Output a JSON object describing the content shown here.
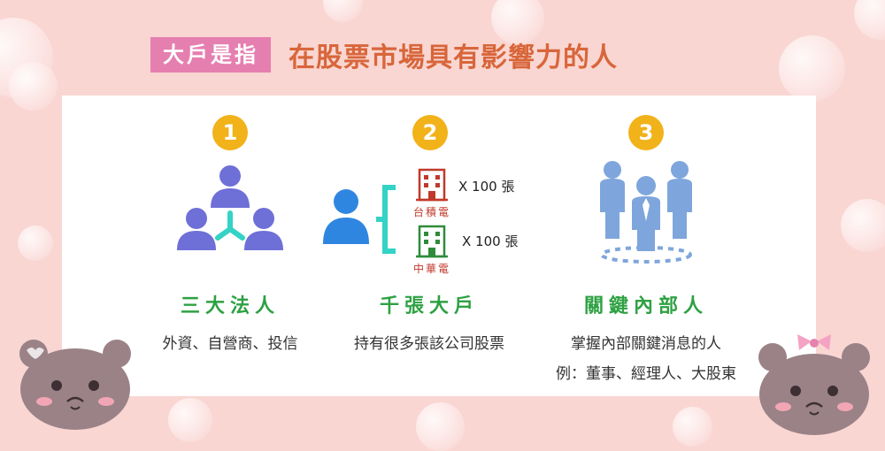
{
  "title": {
    "tag": "大戶是指",
    "text": "在股票市場具有影響力的人"
  },
  "columns": [
    {
      "number": "1",
      "heading": "三大法人",
      "lines": [
        "外資、自營商、投信"
      ]
    },
    {
      "number": "2",
      "heading": "千張大戶",
      "lines": [
        "持有很多張該公司股票"
      ],
      "holdings": [
        {
          "company": "台積電",
          "multiplier": "X 100 張"
        },
        {
          "company": "中華電",
          "multiplier": "X 100 張"
        }
      ]
    },
    {
      "number": "3",
      "heading": "關鍵內部人",
      "lines": [
        "掌握內部關鍵消息的人",
        "例：董事、經理人、大股東"
      ]
    }
  ],
  "colors": {
    "tag_bg": "#e57fb0",
    "title": "#d8663a",
    "number_badge": "#f1b21a",
    "heading": "#2ea143",
    "people_purple": "#6f6fd8",
    "people_blue": "#2f86e0",
    "building_red": "#c0392b",
    "building_green": "#2e8b3a",
    "connector": "#33d3c6",
    "insiders": "#7ea6dc"
  }
}
